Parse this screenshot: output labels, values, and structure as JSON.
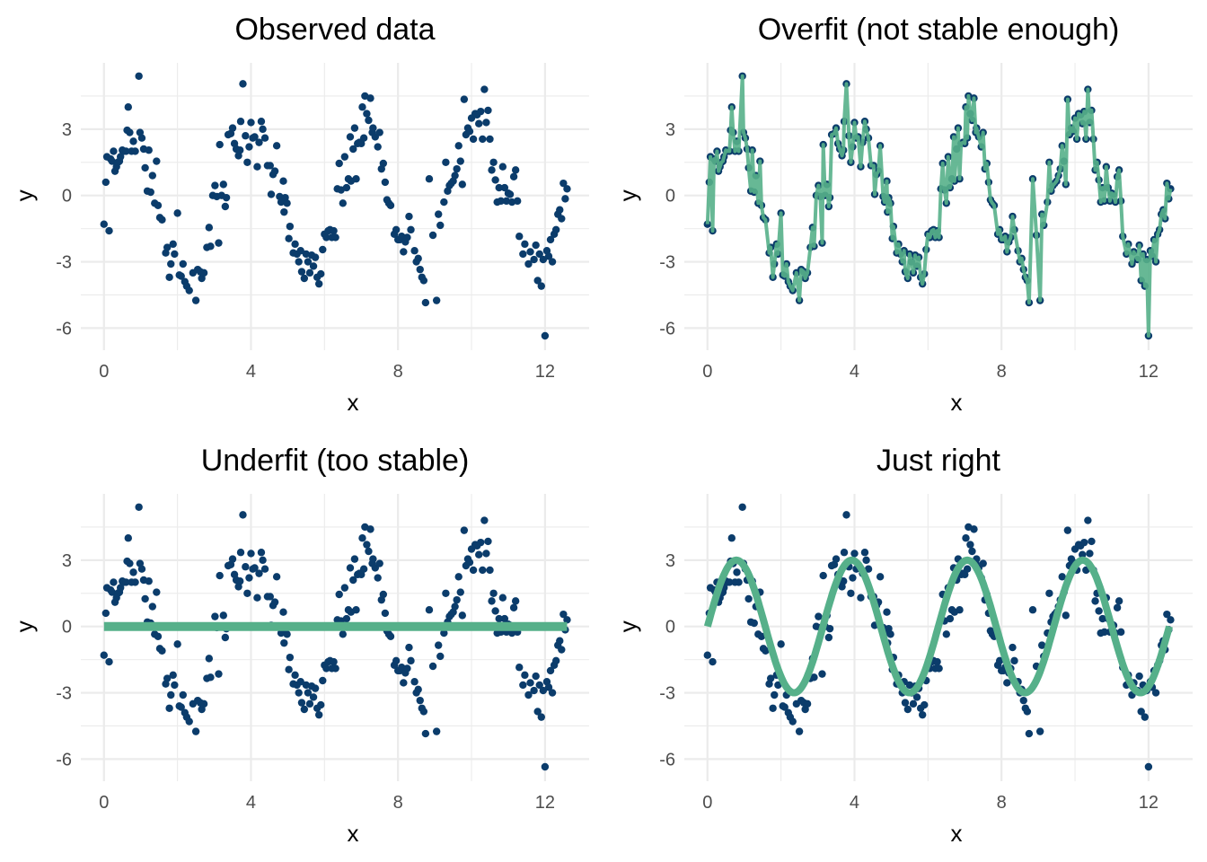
{
  "colors": {
    "points": "#0B3C6B",
    "fit": "#56B08A",
    "grid": "#EBEBEB"
  },
  "chart_data": [
    {
      "id": "observed",
      "type": "scatter",
      "title": "Observed data",
      "xlabel": "x",
      "ylabel": "y",
      "xticks": [
        "0",
        "4",
        "8",
        "12"
      ],
      "yticks": [
        "3",
        "0",
        "-3",
        "-6"
      ],
      "xlim": [
        -0.63,
        13.2
      ],
      "ylim": [
        -7.0,
        6.0
      ],
      "grid": true,
      "fit": "none"
    },
    {
      "id": "overfit",
      "type": "line",
      "title": "Overfit (not stable enough)",
      "xlabel": "x",
      "ylabel": "y",
      "xticks": [
        "0",
        "4",
        "8",
        "12"
      ],
      "yticks": [
        "3",
        "0",
        "-3",
        "-6"
      ],
      "xlim": [
        -0.63,
        13.2
      ],
      "ylim": [
        -7.0,
        6.0
      ],
      "grid": true,
      "fit": "interpolate"
    },
    {
      "id": "underfit",
      "type": "line",
      "title": "Underfit (too stable)",
      "xlabel": "x",
      "ylabel": "y",
      "xticks": [
        "0",
        "4",
        "8",
        "12"
      ],
      "yticks": [
        "3",
        "0",
        "-3",
        "-6"
      ],
      "xlim": [
        -0.63,
        13.2
      ],
      "ylim": [
        -7.0,
        6.0
      ],
      "grid": true,
      "fit": "constant",
      "fit_value": 0
    },
    {
      "id": "justright",
      "type": "line",
      "title": "Just right",
      "xlabel": "x",
      "ylabel": "y",
      "xticks": [
        "0",
        "4",
        "8",
        "12"
      ],
      "yticks": [
        "3",
        "0",
        "-3",
        "-6"
      ],
      "xlim": [
        -0.63,
        13.2
      ],
      "ylim": [
        -7.0,
        6.0
      ],
      "grid": true,
      "fit": "sine",
      "fit_function": "y = 3 * sin(2 * x)",
      "fit_amplitude": 3,
      "fit_frequency": 2,
      "fit_xrange": [
        0,
        12.566
      ]
    }
  ],
  "points": [
    [
      0.0,
      -1.3
    ],
    [
      0.05,
      0.6
    ],
    [
      0.08,
      1.75
    ],
    [
      0.14,
      -1.6
    ],
    [
      0.18,
      1.65
    ],
    [
      0.22,
      1.55
    ],
    [
      0.26,
      2.0
    ],
    [
      0.3,
      1.1
    ],
    [
      0.34,
      1.3
    ],
    [
      0.38,
      1.5
    ],
    [
      0.42,
      1.55
    ],
    [
      0.45,
      1.75
    ],
    [
      0.5,
      2.05
    ],
    [
      0.55,
      2.0
    ],
    [
      0.6,
      2.0
    ],
    [
      0.63,
      2.95
    ],
    [
      0.66,
      4.0
    ],
    [
      0.7,
      2.85
    ],
    [
      0.75,
      2.0
    ],
    [
      0.8,
      2.45
    ],
    [
      0.85,
      2.0
    ],
    [
      0.95,
      5.4
    ],
    [
      0.98,
      2.85
    ],
    [
      1.03,
      2.6
    ],
    [
      1.08,
      2.1
    ],
    [
      1.12,
      1.25
    ],
    [
      1.18,
      0.2
    ],
    [
      1.22,
      2.05
    ],
    [
      1.27,
      0.15
    ],
    [
      1.32,
      0.9
    ],
    [
      1.38,
      -0.35
    ],
    [
      1.43,
      1.55
    ],
    [
      1.47,
      -0.45
    ],
    [
      1.52,
      -1.0
    ],
    [
      1.58,
      -1.1
    ],
    [
      1.68,
      -2.6
    ],
    [
      1.72,
      -2.35
    ],
    [
      1.78,
      -3.7
    ],
    [
      1.82,
      -3.1
    ],
    [
      1.88,
      -2.2
    ],
    [
      1.92,
      -2.65
    ],
    [
      2.0,
      -0.8
    ],
    [
      2.05,
      -3.6
    ],
    [
      2.1,
      -3.65
    ],
    [
      2.15,
      -3.1
    ],
    [
      2.2,
      -3.9
    ],
    [
      2.25,
      -4.1
    ],
    [
      2.32,
      -4.3
    ],
    [
      2.42,
      -3.5
    ],
    [
      2.5,
      -4.75
    ],
    [
      2.55,
      -3.35
    ],
    [
      2.62,
      -3.45
    ],
    [
      2.66,
      -3.75
    ],
    [
      2.72,
      -3.5
    ],
    [
      2.8,
      -2.35
    ],
    [
      2.86,
      -1.45
    ],
    [
      2.9,
      -2.3
    ],
    [
      2.96,
      0.0
    ],
    [
      3.02,
      0.45
    ],
    [
      3.07,
      -0.05
    ],
    [
      3.12,
      -2.15
    ],
    [
      3.15,
      2.3
    ],
    [
      3.2,
      0.0
    ],
    [
      3.25,
      0.5
    ],
    [
      3.3,
      -0.5
    ],
    [
      3.33,
      -0.1
    ],
    [
      3.38,
      2.75
    ],
    [
      3.45,
      2.8
    ],
    [
      3.5,
      3.05
    ],
    [
      3.55,
      2.35
    ],
    [
      3.6,
      2.1
    ],
    [
      3.66,
      1.8
    ],
    [
      3.7,
      2.05
    ],
    [
      3.72,
      3.35
    ],
    [
      3.78,
      5.05
    ],
    [
      3.85,
      2.7
    ],
    [
      3.9,
      1.5
    ],
    [
      3.95,
      2.2
    ],
    [
      4.0,
      3.3
    ],
    [
      4.05,
      2.6
    ],
    [
      4.1,
      2.65
    ],
    [
      4.17,
      1.3
    ],
    [
      4.22,
      2.4
    ],
    [
      4.28,
      3.35
    ],
    [
      4.32,
      3.0
    ],
    [
      4.38,
      2.6
    ],
    [
      4.45,
      1.35
    ],
    [
      4.52,
      1.35
    ],
    [
      4.55,
      0.05
    ],
    [
      4.6,
      0.95
    ],
    [
      4.65,
      1.1
    ],
    [
      4.7,
      2.25
    ],
    [
      4.78,
      -0.05
    ],
    [
      4.82,
      -0.3
    ],
    [
      4.88,
      0.65
    ],
    [
      4.9,
      -0.75
    ],
    [
      4.93,
      -0.1
    ],
    [
      4.98,
      -0.35
    ],
    [
      5.03,
      -1.95
    ],
    [
      5.06,
      -1.4
    ],
    [
      5.15,
      -2.6
    ],
    [
      5.2,
      -2.2
    ],
    [
      5.25,
      -2.65
    ],
    [
      5.3,
      -3.0
    ],
    [
      5.35,
      -2.5
    ],
    [
      5.38,
      -3.45
    ],
    [
      5.45,
      -3.75
    ],
    [
      5.5,
      -2.65
    ],
    [
      5.55,
      -3.0
    ],
    [
      5.6,
      -3.5
    ],
    [
      5.65,
      -2.7
    ],
    [
      5.7,
      -3.2
    ],
    [
      5.75,
      -2.8
    ],
    [
      5.8,
      -3.7
    ],
    [
      5.85,
      -4.0
    ],
    [
      5.9,
      -3.55
    ],
    [
      5.95,
      -2.45
    ],
    [
      6.0,
      -1.75
    ],
    [
      6.05,
      -1.9
    ],
    [
      6.1,
      -1.6
    ],
    [
      6.15,
      -1.55
    ],
    [
      6.2,
      -1.9
    ],
    [
      6.25,
      -1.6
    ],
    [
      6.3,
      -1.9
    ],
    [
      6.35,
      0.3
    ],
    [
      6.4,
      1.45
    ],
    [
      6.45,
      0.25
    ],
    [
      6.5,
      -0.35
    ],
    [
      6.55,
      1.75
    ],
    [
      6.6,
      0.35
    ],
    [
      6.65,
      0.75
    ],
    [
      6.7,
      2.65
    ],
    [
      6.72,
      0.65
    ],
    [
      6.78,
      2.1
    ],
    [
      6.82,
      3.05
    ],
    [
      6.86,
      0.75
    ],
    [
      6.9,
      2.35
    ],
    [
      6.95,
      2.4
    ],
    [
      7.0,
      2.35
    ],
    [
      7.03,
      4.0
    ],
    [
      7.07,
      2.6
    ],
    [
      7.1,
      4.5
    ],
    [
      7.15,
      3.7
    ],
    [
      7.2,
      3.4
    ],
    [
      7.25,
      4.4
    ],
    [
      7.3,
      2.85
    ],
    [
      7.32,
      3.05
    ],
    [
      7.38,
      2.65
    ],
    [
      7.45,
      2.2
    ],
    [
      7.5,
      2.85
    ],
    [
      7.55,
      1.2
    ],
    [
      7.6,
      1.45
    ],
    [
      7.65,
      0.6
    ],
    [
      7.7,
      -0.2
    ],
    [
      7.75,
      -0.35
    ],
    [
      7.8,
      -0.45
    ],
    [
      7.9,
      -1.75
    ],
    [
      7.95,
      -1.55
    ],
    [
      8.0,
      -2.0
    ],
    [
      8.05,
      -2.0
    ],
    [
      8.1,
      -1.85
    ],
    [
      8.15,
      -2.55
    ],
    [
      8.2,
      -2.1
    ],
    [
      8.25,
      -1.9
    ],
    [
      8.3,
      -0.95
    ],
    [
      8.35,
      -1.55
    ],
    [
      8.45,
      -2.5
    ],
    [
      8.5,
      -3.0
    ],
    [
      8.55,
      -2.85
    ],
    [
      8.6,
      -3.35
    ],
    [
      8.65,
      -3.7
    ],
    [
      8.7,
      -3.85
    ],
    [
      8.75,
      -4.85
    ],
    [
      8.85,
      0.75
    ],
    [
      8.95,
      -1.8
    ],
    [
      9.05,
      -4.75
    ],
    [
      9.1,
      -0.85
    ],
    [
      9.15,
      -1.35
    ],
    [
      9.25,
      -0.3
    ],
    [
      9.3,
      1.5
    ],
    [
      9.35,
      0.2
    ],
    [
      9.4,
      0.45
    ],
    [
      9.45,
      0.55
    ],
    [
      9.5,
      0.65
    ],
    [
      9.55,
      0.9
    ],
    [
      9.6,
      1.2
    ],
    [
      9.65,
      2.25
    ],
    [
      9.7,
      1.55
    ],
    [
      9.75,
      0.5
    ],
    [
      9.8,
      4.35
    ],
    [
      9.85,
      2.75
    ],
    [
      9.9,
      3.05
    ],
    [
      9.95,
      2.9
    ],
    [
      10.0,
      3.5
    ],
    [
      10.05,
      2.55
    ],
    [
      10.1,
      3.7
    ],
    [
      10.15,
      3.65
    ],
    [
      10.2,
      3.25
    ],
    [
      10.25,
      3.8
    ],
    [
      10.3,
      2.55
    ],
    [
      10.35,
      4.8
    ],
    [
      10.4,
      3.3
    ],
    [
      10.45,
      3.85
    ],
    [
      10.5,
      2.55
    ],
    [
      10.55,
      1.15
    ],
    [
      10.6,
      1.5
    ],
    [
      10.65,
      0.7
    ],
    [
      10.7,
      -0.3
    ],
    [
      10.75,
      0.35
    ],
    [
      10.8,
      -0.25
    ],
    [
      10.85,
      1.3
    ],
    [
      10.9,
      0.35
    ],
    [
      10.95,
      -0.25
    ],
    [
      11.0,
      0.1
    ],
    [
      11.05,
      0.05
    ],
    [
      11.1,
      -0.3
    ],
    [
      11.15,
      0.85
    ],
    [
      11.2,
      1.15
    ],
    [
      11.25,
      -0.25
    ],
    [
      11.3,
      -1.85
    ],
    [
      11.4,
      -2.65
    ],
    [
      11.45,
      -2.2
    ],
    [
      11.55,
      -3.1
    ],
    [
      11.6,
      -2.55
    ],
    [
      11.7,
      -2.9
    ],
    [
      11.75,
      -2.25
    ],
    [
      11.8,
      -3.85
    ],
    [
      11.85,
      -2.65
    ],
    [
      11.9,
      -4.1
    ],
    [
      11.95,
      -2.9
    ],
    [
      12.0,
      -6.35
    ],
    [
      12.05,
      -2.5
    ],
    [
      12.1,
      -2.75
    ],
    [
      12.15,
      -2.0
    ],
    [
      12.2,
      -3.0
    ],
    [
      12.25,
      -1.75
    ],
    [
      12.3,
      -1.55
    ],
    [
      12.35,
      -0.85
    ],
    [
      12.4,
      -0.65
    ],
    [
      12.45,
      -1.05
    ],
    [
      12.5,
      0.55
    ],
    [
      12.55,
      -0.15
    ],
    [
      12.6,
      0.3
    ]
  ]
}
